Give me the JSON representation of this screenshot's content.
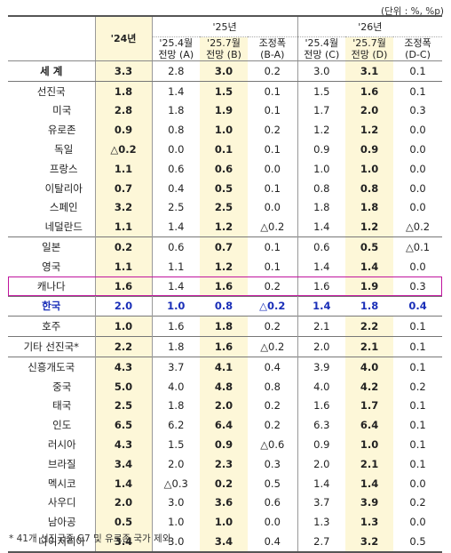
{
  "unit_note": "(단위 : %, %p)",
  "header": {
    "col_2024": "'24년",
    "grp_2025": "'25년",
    "grp_2026": "'26년",
    "a_1": "'25.4월",
    "a_2": "전망 (A)",
    "b_1": "'25.7월",
    "b_2": "전망 (B)",
    "ba_1": "조정폭",
    "ba_2": "(B-A)",
    "c_1": "'25.4월",
    "c_2": "전망 (C)",
    "d_1": "'25.7월",
    "d_2": "전망 (D)",
    "dc_1": "조정폭",
    "dc_2": "(D-C)"
  },
  "rows": [
    {
      "name": "세  계",
      "y24": "3.3",
      "a": "2.8",
      "b": "3.0",
      "ba": "0.2",
      "c": "3.0",
      "d": "3.1",
      "dc": "0.1"
    },
    {
      "name": "선진국",
      "y24": "1.8",
      "a": "1.4",
      "b": "1.5",
      "ba": "0.1",
      "c": "1.5",
      "d": "1.6",
      "dc": "0.1"
    },
    {
      "name": "미국",
      "y24": "2.8",
      "a": "1.8",
      "b": "1.9",
      "ba": "0.1",
      "c": "1.7",
      "d": "2.0",
      "dc": "0.3"
    },
    {
      "name": "유로존",
      "y24": "0.9",
      "a": "0.8",
      "b": "1.0",
      "ba": "0.2",
      "c": "1.2",
      "d": "1.2",
      "dc": "0.0"
    },
    {
      "name": "독일",
      "y24": "△0.2",
      "a": "0.0",
      "b": "0.1",
      "ba": "0.1",
      "c": "0.9",
      "d": "0.9",
      "dc": "0.0"
    },
    {
      "name": "프랑스",
      "y24": "1.1",
      "a": "0.6",
      "b": "0.6",
      "ba": "0.0",
      "c": "1.0",
      "d": "1.0",
      "dc": "0.0"
    },
    {
      "name": "이탈리아",
      "y24": "0.7",
      "a": "0.4",
      "b": "0.5",
      "ba": "0.1",
      "c": "0.8",
      "d": "0.8",
      "dc": "0.0"
    },
    {
      "name": "스페인",
      "y24": "3.2",
      "a": "2.5",
      "b": "2.5",
      "ba": "0.0",
      "c": "1.8",
      "d": "1.8",
      "dc": "0.0"
    },
    {
      "name": "네덜란드",
      "y24": "1.1",
      "a": "1.4",
      "b": "1.2",
      "ba": "△0.2",
      "c": "1.4",
      "d": "1.2",
      "dc": "△0.2"
    },
    {
      "name": "일본",
      "y24": "0.2",
      "a": "0.6",
      "b": "0.7",
      "ba": "0.1",
      "c": "0.6",
      "d": "0.5",
      "dc": "△0.1"
    },
    {
      "name": "영국",
      "y24": "1.1",
      "a": "1.1",
      "b": "1.2",
      "ba": "0.1",
      "c": "1.4",
      "d": "1.4",
      "dc": "0.0"
    },
    {
      "name": "캐나다",
      "y24": "1.6",
      "a": "1.4",
      "b": "1.6",
      "ba": "0.2",
      "c": "1.6",
      "d": "1.9",
      "dc": "0.3"
    },
    {
      "name": "한국",
      "y24": "2.0",
      "a": "1.0",
      "b": "0.8",
      "ba": "△0.2",
      "c": "1.4",
      "d": "1.8",
      "dc": "0.4"
    },
    {
      "name": "호주",
      "y24": "1.0",
      "a": "1.6",
      "b": "1.8",
      "ba": "0.2",
      "c": "2.1",
      "d": "2.2",
      "dc": "0.1"
    },
    {
      "name": "기타 선진국*",
      "y24": "2.2",
      "a": "1.8",
      "b": "1.6",
      "ba": "△0.2",
      "c": "2.0",
      "d": "2.1",
      "dc": "0.1"
    },
    {
      "name": "신흥개도국",
      "y24": "4.3",
      "a": "3.7",
      "b": "4.1",
      "ba": "0.4",
      "c": "3.9",
      "d": "4.0",
      "dc": "0.1"
    },
    {
      "name": "중국",
      "y24": "5.0",
      "a": "4.0",
      "b": "4.8",
      "ba": "0.8",
      "c": "4.0",
      "d": "4.2",
      "dc": "0.2"
    },
    {
      "name": "태국",
      "y24": "2.5",
      "a": "1.8",
      "b": "2.0",
      "ba": "0.2",
      "c": "1.6",
      "d": "1.7",
      "dc": "0.1"
    },
    {
      "name": "인도",
      "y24": "6.5",
      "a": "6.2",
      "b": "6.4",
      "ba": "0.2",
      "c": "6.3",
      "d": "6.4",
      "dc": "0.1"
    },
    {
      "name": "러시아",
      "y24": "4.3",
      "a": "1.5",
      "b": "0.9",
      "ba": "△0.6",
      "c": "0.9",
      "d": "1.0",
      "dc": "0.1"
    },
    {
      "name": "브라질",
      "y24": "3.4",
      "a": "2.0",
      "b": "2.3",
      "ba": "0.3",
      "c": "2.0",
      "d": "2.1",
      "dc": "0.1"
    },
    {
      "name": "멕시코",
      "y24": "1.4",
      "a": "△0.3",
      "b": "0.2",
      "ba": "0.5",
      "c": "1.4",
      "d": "1.4",
      "dc": "0.0"
    },
    {
      "name": "사우디",
      "y24": "2.0",
      "a": "3.0",
      "b": "3.6",
      "ba": "0.6",
      "c": "3.7",
      "d": "3.9",
      "dc": "0.2"
    },
    {
      "name": "남아공",
      "y24": "0.5",
      "a": "1.0",
      "b": "1.0",
      "ba": "0.0",
      "c": "1.3",
      "d": "1.3",
      "dc": "0.0"
    },
    {
      "name": "나이지리아",
      "y24": "3.4",
      "a": "3.0",
      "b": "3.4",
      "ba": "0.4",
      "c": "2.7",
      "d": "3.2",
      "dc": "0.5"
    }
  ],
  "footnote": "* 41개 선진국중 G7 및 유로존 국가 제외"
}
